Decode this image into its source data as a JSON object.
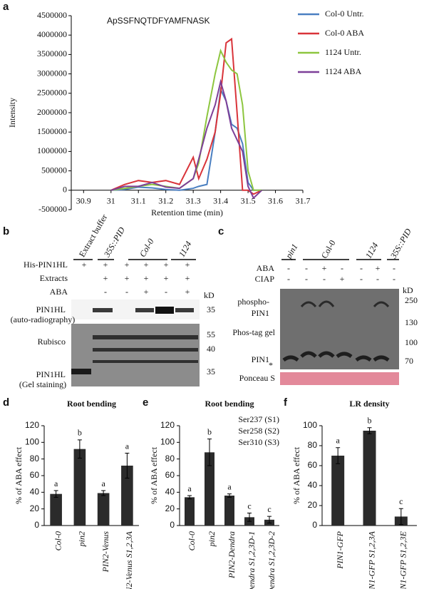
{
  "panel_labels": [
    "a",
    "b",
    "c",
    "d",
    "e",
    "f"
  ],
  "chart_data": [
    {
      "type": "line",
      "title": "ApSSFNQTDFYAMFNASK",
      "x_label": "Retention time (min)",
      "y_label": "Intensity",
      "x": [
        31.0,
        31.05,
        31.1,
        31.15,
        31.2,
        31.25,
        31.3,
        31.32,
        31.35,
        31.38,
        31.4,
        31.42,
        31.44,
        31.46,
        31.48,
        31.5,
        31.52,
        31.55
      ],
      "series": [
        {
          "name": "Col-0 Untr.",
          "color": "#4a7fc1",
          "values": [
            0,
            20000,
            80000,
            60000,
            20000,
            0,
            50000,
            100000,
            150000,
            1500000,
            2600000,
            2300000,
            1700000,
            1600000,
            1200000,
            200000,
            0,
            0
          ]
        },
        {
          "name": "Col-0 ABA",
          "color": "#d9343a",
          "values": [
            0,
            150000,
            250000,
            200000,
            250000,
            150000,
            850000,
            300000,
            800000,
            1500000,
            2500000,
            3800000,
            3900000,
            2000000,
            0,
            0,
            -100000,
            0
          ]
        },
        {
          "name": "1124 Untr.",
          "color": "#8dc63f",
          "values": [
            0,
            50000,
            100000,
            150000,
            100000,
            50000,
            300000,
            700000,
            1900000,
            3000000,
            3600000,
            3300000,
            3100000,
            3000000,
            2200000,
            500000,
            0,
            0
          ]
        },
        {
          "name": "1124 ABA",
          "color": "#7d3f98",
          "values": [
            0,
            100000,
            100000,
            200000,
            80000,
            50000,
            300000,
            800000,
            1600000,
            2200000,
            2800000,
            2300000,
            1600000,
            1300000,
            1000000,
            100000,
            -200000,
            0
          ]
        }
      ],
      "xlim": [
        30.855,
        31.7
      ],
      "xticks": [
        30.9,
        31,
        31.1,
        31.2,
        31.3,
        31.4,
        31.5,
        31.6,
        31.7
      ],
      "ylim": [
        -500000,
        4500000
      ],
      "yticks": [
        -500000,
        0,
        500000,
        1000000,
        1500000,
        2000000,
        2500000,
        3000000,
        3500000,
        4000000,
        4500000
      ]
    },
    {
      "type": "bar",
      "title": "Root bending",
      "y_label": "% of ABA effect",
      "color": "#2b2b2b",
      "categories": [
        "Col-0",
        "pin2",
        "PIN2-Venus",
        "PIN2-Venus S1,2,3A"
      ],
      "values": [
        38,
        92,
        39,
        72
      ],
      "errors": [
        4,
        11,
        3,
        15
      ],
      "significance": [
        "a",
        "b",
        "a",
        "a"
      ],
      "ylim": [
        0,
        120
      ],
      "yticks": [
        0,
        20,
        40,
        60,
        80,
        100,
        120
      ]
    },
    {
      "type": "bar",
      "title": "Root bending",
      "y_label": "% of ABA effect",
      "color": "#2b2b2b",
      "annotations": [
        "Ser237 (S1)",
        "Ser258 (S2)",
        "Ser310 (S3)"
      ],
      "categories": [
        "Col-0",
        "pin2",
        "PIN2-Dendra",
        "PIN2-Dendra S1,2,3D-1",
        "PIN2-Dendra S1,2,3D-2"
      ],
      "values": [
        34,
        88,
        36,
        10,
        7
      ],
      "errors": [
        2,
        16,
        2,
        5,
        4
      ],
      "significance": [
        "a",
        "b",
        "a",
        "c",
        "c"
      ],
      "ylim": [
        0,
        120
      ],
      "yticks": [
        0,
        20,
        40,
        60,
        80,
        100,
        120
      ]
    },
    {
      "type": "bar",
      "title": "LR density",
      "y_label": "% of ABA effect",
      "color": "#2b2b2b",
      "categories": [
        "PIN1-GFP",
        "PIN1-GFP S1,2,3A",
        "PIN1-GFP S1,2,3E"
      ],
      "values": [
        70,
        95,
        9
      ],
      "errors": [
        8,
        3,
        8
      ],
      "significance": [
        "a",
        "b",
        "c"
      ],
      "ylim": [
        0,
        100
      ],
      "yticks": [
        0,
        20,
        40,
        60,
        80,
        100
      ]
    }
  ],
  "gel_b": {
    "lanes": [
      "Extract buffer",
      "35S::PID",
      "Col-0",
      "1124"
    ],
    "rows": [
      {
        "label": "His-PIN1HL",
        "signs": [
          "+",
          "+",
          "+",
          "+",
          "+",
          "+"
        ]
      },
      {
        "label": "Extracts",
        "signs": [
          null,
          "+",
          "+",
          "+",
          "+",
          "+"
        ]
      },
      {
        "label": "ABA",
        "signs": [
          null,
          "-",
          "-",
          "+",
          "-",
          "+"
        ]
      }
    ],
    "kd": "kD",
    "markers": [
      "35",
      "55",
      "40",
      "35"
    ],
    "labels": [
      "PIN1HL",
      "(auto-radiography)",
      "Rubisco",
      "PIN1HL",
      "(Gel staining)"
    ]
  },
  "gel_c": {
    "lanes": [
      "pin1",
      "Col-0",
      "1124",
      "35S::PID"
    ],
    "rows": [
      {
        "label": "ABA",
        "signs": [
          "-",
          "-",
          "+",
          "-",
          "-",
          "+",
          "-"
        ]
      },
      {
        "label": "CIAP",
        "signs": [
          "-",
          "-",
          "-",
          "+",
          "-",
          "-",
          "-"
        ]
      }
    ],
    "kd": "kD",
    "markers": [
      "250",
      "130",
      "100",
      "70"
    ],
    "labels": [
      "phospho-",
      "PIN1",
      "Phos-tag gel",
      "PIN1",
      "*",
      "Ponceau S"
    ]
  }
}
